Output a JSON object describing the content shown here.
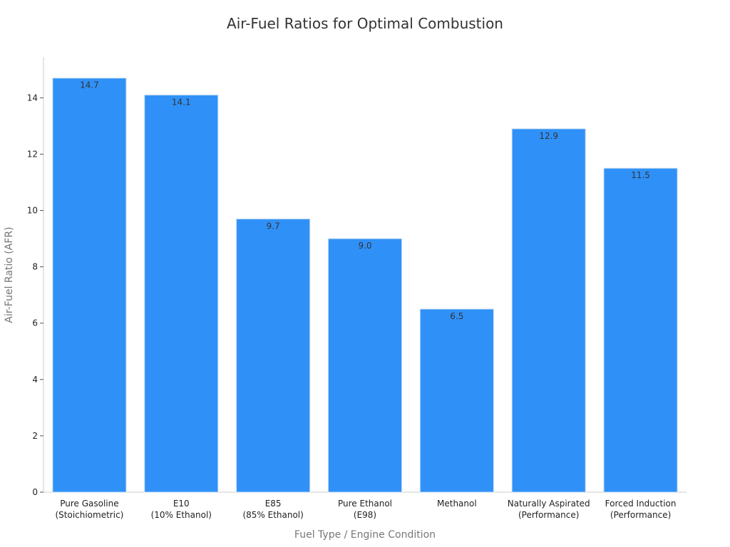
{
  "chart_data": {
    "type": "bar",
    "title": "Air-Fuel Ratios for Optimal Combustion",
    "xlabel": "Fuel Type / Engine Condition",
    "ylabel": "Air-Fuel Ratio (AFR)",
    "categories": [
      [
        "Pure Gasoline",
        "(Stoichiometric)"
      ],
      [
        "E10",
        "(10% Ethanol)"
      ],
      [
        "E85",
        "(85% Ethanol)"
      ],
      [
        "Pure Ethanol",
        "(E98)"
      ],
      [
        "Methanol"
      ],
      [
        "Naturally Aspirated",
        "(Performance)"
      ],
      [
        "Forced Induction",
        "(Performance)"
      ]
    ],
    "values": [
      14.7,
      14.1,
      9.7,
      9.0,
      6.5,
      12.9,
      11.5
    ],
    "data_labels": [
      "14.7",
      "14.1",
      "9.7",
      "9.0",
      "6.5",
      "12.9",
      "11.5"
    ],
    "yticks": [
      0,
      2,
      4,
      6,
      8,
      10,
      12,
      14
    ],
    "ylim": [
      0,
      15.45
    ],
    "grid": false,
    "legend": "none",
    "bar_color": "#2f91f8"
  }
}
